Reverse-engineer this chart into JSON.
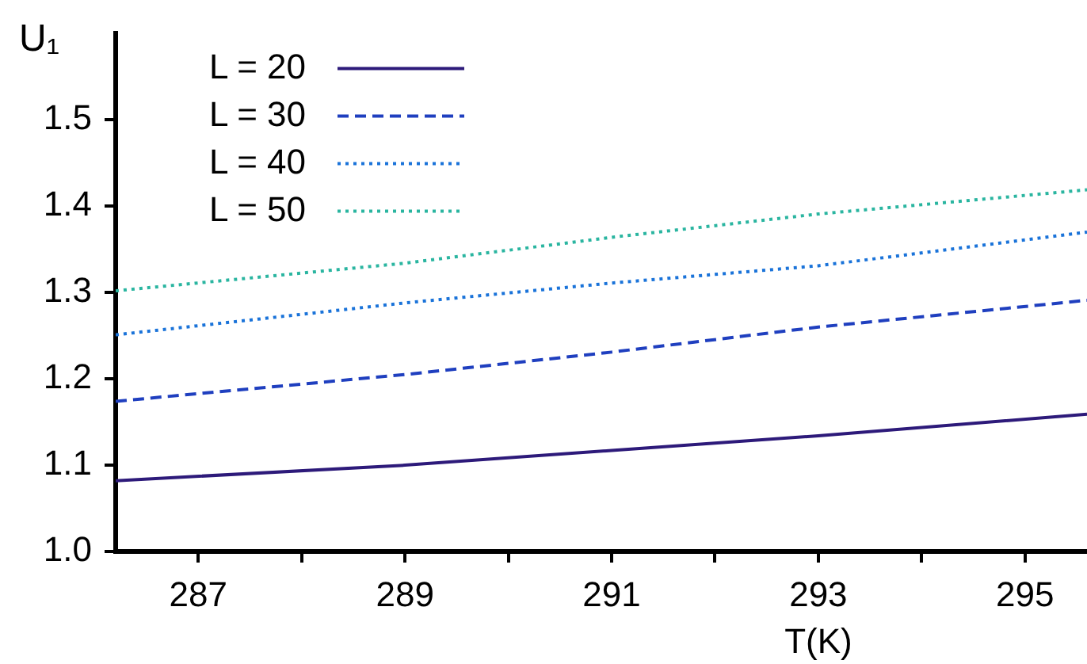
{
  "chart_data": {
    "type": "line",
    "xlabel": "T(K)",
    "ylabel": "U₁",
    "x": [
      286.2,
      289,
      291,
      293,
      295.6
    ],
    "series": [
      {
        "name": "L = 20",
        "color": "#2d1a7a",
        "line_style": "solid",
        "values": [
          1.082,
          1.1,
          1.117,
          1.134,
          1.159
        ]
      },
      {
        "name": "L = 30",
        "color": "#1f3fbf",
        "line_style": "dashed",
        "values": [
          1.174,
          1.205,
          1.231,
          1.26,
          1.291
        ]
      },
      {
        "name": "L = 40",
        "color": "#1a73d9",
        "line_style": "dotted",
        "values": [
          1.251,
          1.288,
          1.311,
          1.331,
          1.37
        ]
      },
      {
        "name": "L = 50",
        "color": "#2ab5a0",
        "line_style": "dotted",
        "values": [
          1.302,
          1.334,
          1.364,
          1.391,
          1.419
        ]
      }
    ],
    "xlim": [
      286.2,
      295.6
    ],
    "ylim": [
      1.0,
      1.6
    ],
    "xticks": [
      287,
      {
        "value": 288,
        "label": null
      },
      289,
      {
        "value": 290,
        "label": null
      },
      291,
      {
        "value": 292,
        "label": null
      },
      293,
      {
        "value": 294,
        "label": null
      },
      295
    ],
    "yticks": [
      {
        "value": 1.0,
        "label": "1.0"
      },
      1.1,
      1.2,
      1.3,
      1.4,
      1.5
    ],
    "grid": false,
    "legend": "top left",
    "marker": "none"
  }
}
